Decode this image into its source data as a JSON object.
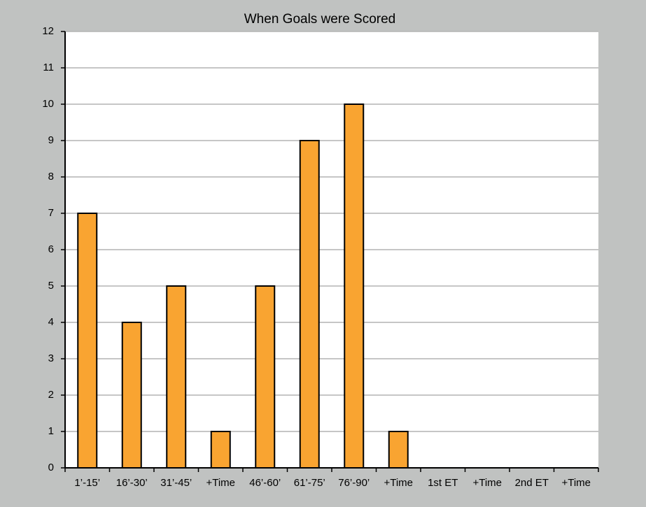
{
  "chart_data": {
    "type": "bar",
    "title": "When Goals were Scored",
    "categories": [
      "1’-15’",
      "16’-30’",
      "31’-45’",
      "+Time",
      "46’-60’",
      "61’-75’",
      "76’-90’",
      "+Time",
      "1st ET",
      "+Time",
      "2nd ET",
      "+Time"
    ],
    "values": [
      7,
      4,
      5,
      1,
      5,
      9,
      10,
      1,
      0,
      0,
      0,
      0
    ],
    "color": "#f9a431",
    "ylim": [
      0,
      12
    ],
    "yticks": [
      0,
      1,
      2,
      3,
      4,
      5,
      6,
      7,
      8,
      9,
      10,
      11,
      12
    ],
    "grid": true
  }
}
